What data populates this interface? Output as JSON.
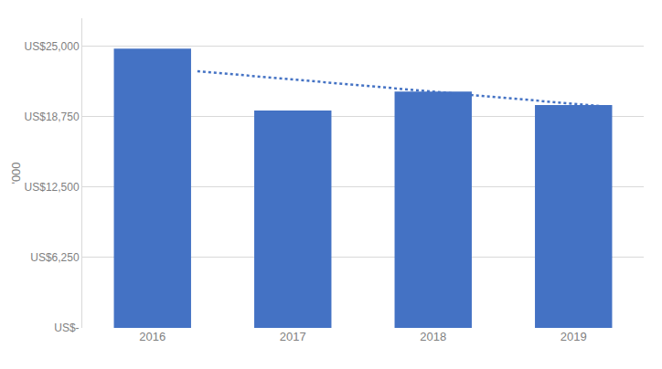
{
  "chart_data": {
    "type": "bar",
    "categories": [
      "2016",
      "2017",
      "2018",
      "2019"
    ],
    "series": [
      {
        "type": "bar",
        "color": "#4472C4",
        "values": [
          24800,
          19300,
          21000,
          19800
        ]
      },
      {
        "type": "line",
        "line_style": "dotted",
        "color": "#4472C4",
        "x": [
          0.32,
          3.28
        ],
        "values": [
          22800,
          19600
        ]
      }
    ],
    "ylabel": "'000",
    "ylim": [
      0,
      27500
    ],
    "yticks": [
      {
        "value": 0,
        "label": "US$-"
      },
      {
        "value": 6250,
        "label": "US$6,250"
      },
      {
        "value": 12500,
        "label": "US$12,500"
      },
      {
        "value": 18750,
        "label": "US$18,750"
      },
      {
        "value": 25000,
        "label": "US$25,000"
      }
    ],
    "grid": true
  }
}
